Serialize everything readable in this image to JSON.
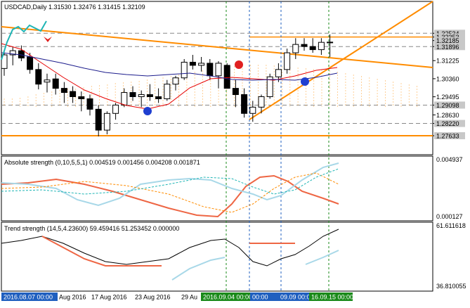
{
  "main": {
    "header": "USDCAD,Daily  1.31530 1.32476 1.31415 1.32109",
    "price_ticks": [
      "1.32534",
      "1.32353",
      "1.32185",
      "1.31896",
      "1.31225",
      "1.30360",
      "1.29495",
      "1.29098",
      "1.28630",
      "1.28220",
      "1.27633"
    ],
    "highlight_prices": [
      "1.32534",
      "1.32353",
      "1.32185",
      "1.31896",
      "1.29098",
      "1.28220",
      "1.27633"
    ]
  },
  "panel2": {
    "header": "Absolute strength (0,10,5,5,1) 0.004519 0.001456 0.004208 0.001871",
    "scale_top": "0.004937",
    "scale_bottom": "0.000127"
  },
  "panel3": {
    "header": "Trend strength (14,5,4.23600) 59.459416 51.253452 0.000000",
    "scale_top": "61.611618",
    "scale_bottom": "36.810055"
  },
  "time_axis": {
    "labels": [
      "Aug 2016",
      "17 Aug 2016",
      "23 Aug 2016",
      "29 Au"
    ],
    "tags": [
      "2016.08.07 00:00",
      "2016.09.04 00:00",
      "00:00",
      "09.09 00:00",
      "16.09.15 00:00"
    ]
  },
  "colors": {
    "bull": "#ffffff",
    "bear": "#000000",
    "orange": "#ff8c00",
    "ma_red": "#e60000",
    "ma_navy": "#1c1c8c",
    "cyan": "#1fb5b5",
    "salmon": "#ee6644",
    "lightblue": "#a8d8e8",
    "tag_blue": "#1f5fbf",
    "tag_green": "#1a8a1a"
  }
}
